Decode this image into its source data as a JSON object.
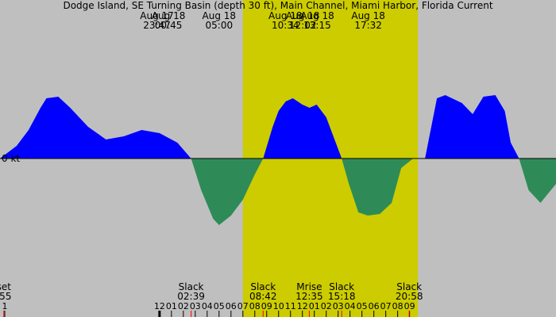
{
  "title": "Dodge Island, SE Turning Basin (depth 30 ft), Main Channel, Miami Harbor, Florida Current",
  "colors": {
    "background": "#bfbfbf",
    "daylight": "#cccc00",
    "flood": "#0000ff",
    "ebb": "#2e8b57",
    "axis": "#000000",
    "tick_red": "#ff0000"
  },
  "chart_data": {
    "type": "area",
    "x_unit": "hour",
    "y_unit": "kt",
    "y_zero_label": "0 kt",
    "x_range": [
      -13.4,
      33.3
    ],
    "daylight_hours": [
      [
        7.0,
        21.7
      ]
    ],
    "series": [
      {
        "x": [
          -13.4,
          -12.0,
          -11.0,
          -10.0,
          -9.5,
          -8.5,
          -7.5,
          -6.0,
          -4.5,
          -3.0,
          -1.5,
          0.0,
          1.5,
          2.65,
          3.5,
          4.5,
          5.0,
          6.0,
          7.0,
          8.0,
          8.7,
          9.5,
          10.0,
          10.6,
          11.2,
          12.0,
          12.6,
          13.2,
          14.0,
          15.3,
          15.9,
          16.7,
          17.5,
          18.5,
          19.5,
          20.3,
          21.3,
          22.3,
          22.3,
          23.3,
          24.0,
          25.4,
          26.3,
          27.2,
          28.2,
          29.0,
          29.5,
          30.2,
          31.0,
          32.0,
          33.3
        ],
        "y": [
          0.0,
          0.4,
          0.9,
          1.6,
          1.9,
          1.95,
          1.6,
          1.0,
          0.6,
          0.7,
          0.9,
          0.8,
          0.5,
          0.0,
          -1.0,
          -1.9,
          -2.1,
          -1.8,
          -1.3,
          -0.5,
          0.0,
          1.0,
          1.5,
          1.8,
          1.9,
          1.7,
          1.6,
          1.7,
          1.3,
          0.0,
          -0.8,
          -1.7,
          -1.8,
          -1.75,
          -1.4,
          -0.3,
          0.0,
          0.0,
          0.0,
          1.9,
          2.0,
          1.75,
          1.4,
          1.95,
          2.0,
          1.5,
          0.5,
          0.0,
          -1.0,
          -1.4,
          -0.8
        ]
      }
    ],
    "top_events": [
      {
        "date": "Aug 17",
        "time": "23:47",
        "x": -0.22
      },
      {
        "date": "Aug 18",
        "time": "00:45",
        "x": 0.75
      },
      {
        "date": "Aug 18",
        "time": "05:00",
        "x": 5.0
      },
      {
        "date": "Aug 18",
        "time": "10:34",
        "x": 10.57
      },
      {
        "date": "Aug 18",
        "time": "12:02",
        "x": 12.03
      },
      {
        "date": "Aug 18",
        "time": "13:15",
        "x": 13.25
      },
      {
        "date": "Aug 18",
        "time": "17:32",
        "x": 17.53
      }
    ],
    "bottom_events": [
      {
        "label": "set",
        "time": ":55",
        "x": -13.08
      },
      {
        "label": "Slack",
        "time": "02:39",
        "x": 2.65
      },
      {
        "label": "Slack",
        "time": "08:42",
        "x": 8.7
      },
      {
        "label": "Mrise",
        "time": "12:35",
        "x": 12.58
      },
      {
        "label": "Slack",
        "time": "15:18",
        "x": 15.3
      },
      {
        "label": "Slack",
        "time": "20:58",
        "x": 20.97
      }
    ],
    "hour_ticks": [
      "1",
      "12",
      "01",
      "02",
      "03",
      "04",
      "05",
      "06",
      "07",
      "08",
      "09",
      "10",
      "11",
      "12",
      "01",
      "02",
      "03",
      "04",
      "05",
      "06",
      "07",
      "08",
      "09"
    ],
    "hour_tick_x": [
      -13.0,
      0.0,
      1.0,
      2.0,
      3.0,
      4.0,
      5.0,
      6.0,
      7.0,
      8.0,
      9.0,
      10.0,
      11.0,
      12.0,
      13.0,
      14.0,
      15.0,
      16.0,
      17.0,
      18.0,
      19.0,
      20.0,
      21.0
    ]
  }
}
